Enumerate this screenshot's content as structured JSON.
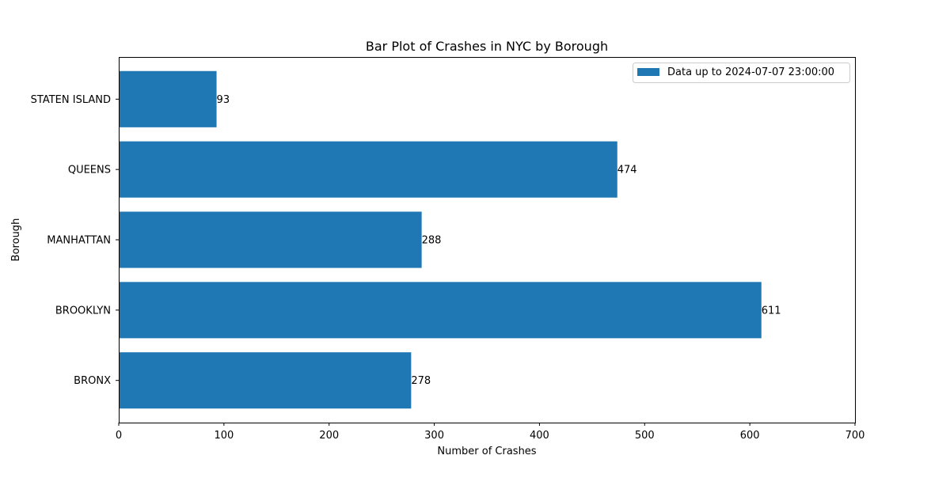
{
  "chart_data": {
    "type": "bar",
    "orientation": "horizontal",
    "title": "Bar Plot of Crashes in NYC by Borough",
    "xlabel": "Number of Crashes",
    "ylabel": "Borough",
    "categories": [
      "BRONX",
      "BROOKLYN",
      "MANHATTAN",
      "QUEENS",
      "STATEN ISLAND"
    ],
    "series": [
      {
        "name": "Data up to 2024-07-07 23:00:00",
        "values": [
          278,
          611,
          288,
          474,
          93
        ],
        "color": "#1f77b4"
      }
    ],
    "xlim": [
      0,
      700
    ],
    "xticks": [
      0,
      100,
      200,
      300,
      400,
      500,
      600,
      700
    ],
    "data_labels": [
      "278",
      "611",
      "288",
      "474",
      "93"
    ],
    "grid": false,
    "legend": {
      "position": "top-right"
    }
  }
}
